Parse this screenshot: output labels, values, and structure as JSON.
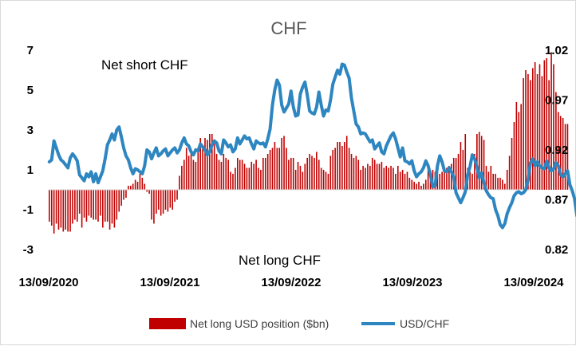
{
  "chart_data": {
    "type": "bar+line",
    "title": "CHF",
    "x_tick_labels": [
      "13/09/2020",
      "13/09/2021",
      "13/09/2022",
      "13/09/2023",
      "13/09/2024"
    ],
    "x_range": [
      "2020-09-13",
      "2024-09-13"
    ],
    "y_left": {
      "ticks": [
        "7",
        "5",
        "3",
        "1",
        "-1",
        "-3"
      ],
      "range": [
        -3,
        7
      ]
    },
    "y_right": {
      "ticks": [
        "1.02",
        "0.97",
        "0.92",
        "0.87",
        "0.82"
      ],
      "range": [
        0.82,
        1.02
      ]
    },
    "annotations": {
      "top": "Net short CHF",
      "bottom": "Net long CHF"
    },
    "colors": {
      "bar": "#c00000",
      "line": "#2e86c1",
      "frame": "#d9d9d9"
    },
    "series": [
      {
        "name": "Net long USD position ($bn)",
        "type": "bar",
        "axis": "left",
        "x_start": "2020-09-15",
        "interval_days": 7,
        "values": [
          -1.6,
          -1.8,
          -2.2,
          -1.7,
          -2.0,
          -1.9,
          -2.1,
          -2.0,
          -2.1,
          -2.1,
          -1.7,
          -1.5,
          -1.6,
          -1.2,
          -1.9,
          -1.4,
          -1.6,
          -1.3,
          -1.4,
          -1.5,
          -1.5,
          -1.6,
          -1.3,
          -1.9,
          -1.6,
          -1.6,
          -2.0,
          -1.7,
          -1.9,
          -1.5,
          -1.1,
          -0.8,
          -0.5,
          -0.4,
          0.2,
          0.2,
          0.3,
          0.5,
          0.4,
          0.8,
          0.6,
          0.3,
          -0.1,
          -0.2,
          -1.5,
          -1.7,
          -1.2,
          -1.0,
          -1.3,
          -1.2,
          -1.0,
          -1.1,
          -0.9,
          -1.0,
          -0.6,
          -0.5,
          0.7,
          1.2,
          1.5,
          2.1,
          1.7,
          1.8,
          1.5,
          1.4,
          2.1,
          2.6,
          2.2,
          2.6,
          2.5,
          2.8,
          2.8,
          2.5,
          1.8,
          1.5,
          1.4,
          1.8,
          1.6,
          1.5,
          0.9,
          0.8,
          1.1,
          1.6,
          1.5,
          1.5,
          1.3,
          1.1,
          1.1,
          1.4,
          1.3,
          1.5,
          1.1,
          1.0,
          1.6,
          1.6,
          1.8,
          2.0,
          2.1,
          2.4,
          2.1,
          2.1,
          2.6,
          2.7,
          2.1,
          1.5,
          1.6,
          1.6,
          1.0,
          1.4,
          1.2,
          0.9,
          1.3,
          1.6,
          1.8,
          1.7,
          1.6,
          1.9,
          1.5,
          1.1,
          1.0,
          0.9,
          0.8,
          1.7,
          2.0,
          2.1,
          2.4,
          2.4,
          2.2,
          2.4,
          2.7,
          2.1,
          1.8,
          1.6,
          1.7,
          1.5,
          1.0,
          1.2,
          1.1,
          1.3,
          1.2,
          1.6,
          1.5,
          1.3,
          1.3,
          1.4,
          1.1,
          1.2,
          1.1,
          1.2,
          1.1,
          0.8,
          1.2,
          0.9,
          1.0,
          0.8,
          0.9,
          0.6,
          0.5,
          0.4,
          0.3,
          0.4,
          0.2,
          0.3,
          0.5,
          1.1,
          0.9,
          1.0,
          0.9,
          0.8,
          0.8,
          0.9,
          1.1,
          1.1,
          1.2,
          1.3,
          1.6,
          1.6,
          1.8,
          2.4,
          2.0,
          2.8,
          1.1,
          0.9,
          0.8,
          1.8,
          2.8,
          2.9,
          2.7,
          2.5,
          1.2,
          0.9,
          1.2,
          0.8,
          0.8,
          0.6,
          0.6,
          0.5,
          0.3,
          1.0,
          1.7,
          2.6,
          3.4,
          4.4,
          3.9,
          4.3,
          5.6,
          6.0,
          5.8,
          5.5,
          6.1,
          6.4,
          5.8,
          6.3,
          5.7,
          6.5,
          6.6,
          5.5,
          6.9,
          6.3,
          4.9,
          3.9,
          3.7,
          3.6,
          3.3,
          3.3
        ]
      },
      {
        "name": "USD/CHF",
        "type": "line",
        "axis": "right",
        "x_start": "2020-09-15",
        "interval_days": 7,
        "values": [
          0.908,
          0.91,
          0.929,
          0.922,
          0.915,
          0.91,
          0.908,
          0.905,
          0.902,
          0.912,
          0.916,
          0.913,
          0.909,
          0.895,
          0.892,
          0.889,
          0.896,
          0.893,
          0.898,
          0.888,
          0.896,
          0.887,
          0.893,
          0.899,
          0.911,
          0.925,
          0.93,
          0.936,
          0.93,
          0.94,
          0.943,
          0.933,
          0.922,
          0.914,
          0.91,
          0.902,
          0.896,
          0.901,
          0.9,
          0.898,
          0.896,
          0.904,
          0.92,
          0.918,
          0.911,
          0.917,
          0.922,
          0.914,
          0.916,
          0.919,
          0.921,
          0.914,
          0.917,
          0.92,
          0.922,
          0.917,
          0.92,
          0.927,
          0.932,
          0.926,
          0.924,
          0.918,
          0.915,
          0.92,
          0.919,
          0.926,
          0.923,
          0.92,
          0.915,
          0.918,
          0.925,
          0.929,
          0.927,
          0.919,
          0.916,
          0.93,
          0.927,
          0.923,
          0.925,
          0.918,
          0.921,
          0.932,
          0.926,
          0.93,
          0.934,
          0.931,
          0.932,
          0.926,
          0.921,
          0.929,
          0.927,
          0.926,
          0.927,
          0.923,
          0.931,
          0.941,
          0.965,
          0.98,
          0.99,
          0.985,
          0.965,
          0.958,
          0.962,
          0.966,
          0.979,
          0.963,
          0.954,
          0.955,
          0.976,
          0.983,
          0.988,
          0.975,
          0.959,
          0.957,
          0.956,
          0.963,
          0.978,
          0.965,
          0.954,
          0.96,
          0.959,
          0.97,
          0.986,
          0.993,
          1.0,
          0.996,
          1.006,
          1.005,
          0.998,
          0.992,
          0.972,
          0.959,
          0.946,
          0.943,
          0.936,
          0.937,
          0.936,
          0.932,
          0.928,
          0.93,
          0.921,
          0.924,
          0.927,
          0.918,
          0.916,
          0.924,
          0.929,
          0.934,
          0.937,
          0.931,
          0.922,
          0.913,
          0.922,
          0.909,
          0.908,
          0.906,
          0.909,
          0.899,
          0.893,
          0.896,
          0.898,
          0.902,
          0.909,
          0.904,
          0.895,
          0.883,
          0.884,
          0.904,
          0.914,
          0.908,
          0.899,
          0.898,
          0.902,
          0.898,
          0.893,
          0.877,
          0.872,
          0.867,
          0.872,
          0.878,
          0.895,
          0.903,
          0.915,
          0.911,
          0.903,
          0.892,
          0.897,
          0.887,
          0.879,
          0.875,
          0.872,
          0.871,
          0.86,
          0.854,
          0.845,
          0.842,
          0.846,
          0.856,
          0.862,
          0.867,
          0.874,
          0.877,
          0.878,
          0.876,
          0.877,
          0.88,
          0.89,
          0.907,
          0.911,
          0.904,
          0.908,
          0.904,
          0.902,
          0.901,
          0.909,
          0.902,
          0.899,
          0.901,
          0.907,
          0.904,
          0.895,
          0.893,
          0.896,
          0.899,
          0.885,
          0.879,
          0.871,
          0.854,
          0.859,
          0.864,
          0.85,
          0.85,
          0.849,
          0.844,
          0.846,
          0.848
        ]
      }
    ],
    "legend": {
      "position": "bottom",
      "entries": [
        "Net long USD position ($bn)",
        "USD/CHF"
      ]
    },
    "grid": false
  }
}
